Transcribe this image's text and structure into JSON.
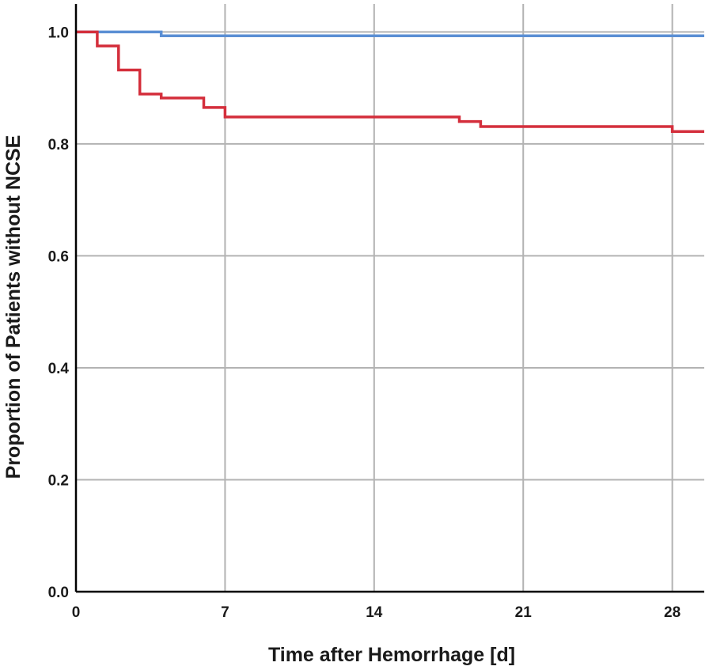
{
  "chart_data": {
    "type": "line",
    "step": true,
    "title": "",
    "xlabel": "Time after Hemorrhage [d]",
    "ylabel": "Proportion of Patients without NCSE",
    "xlim": [
      0,
      29.5
    ],
    "ylim": [
      0,
      1.05
    ],
    "x_ticks": [
      0,
      7,
      14,
      21,
      28
    ],
    "x_tick_labels": [
      "0",
      "7",
      "14",
      "21",
      "28"
    ],
    "y_ticks": [
      0.0,
      0.2,
      0.4,
      0.6,
      0.8,
      1.0
    ],
    "y_tick_labels": [
      "0.0",
      "0.2",
      "0.4",
      "0.6",
      "0.8",
      "1.0"
    ],
    "grid": true,
    "legend": "none",
    "series": [
      {
        "color": "#5b8fd4",
        "points": [
          [
            0,
            1.0
          ],
          [
            4,
            1.0
          ],
          [
            4,
            0.993
          ],
          [
            29.5,
            0.993
          ]
        ]
      },
      {
        "color": "#d42f3c",
        "points": [
          [
            0,
            1.0
          ],
          [
            1,
            1.0
          ],
          [
            1,
            0.975
          ],
          [
            2,
            0.975
          ],
          [
            2,
            0.932
          ],
          [
            3,
            0.932
          ],
          [
            3,
            0.889
          ],
          [
            4,
            0.889
          ],
          [
            4,
            0.882
          ],
          [
            6,
            0.882
          ],
          [
            6,
            0.865
          ],
          [
            7,
            0.865
          ],
          [
            7,
            0.848
          ],
          [
            18,
            0.848
          ],
          [
            18,
            0.84
          ],
          [
            19,
            0.84
          ],
          [
            19,
            0.831
          ],
          [
            28,
            0.831
          ],
          [
            28,
            0.822
          ],
          [
            29.5,
            0.822
          ]
        ]
      }
    ]
  }
}
